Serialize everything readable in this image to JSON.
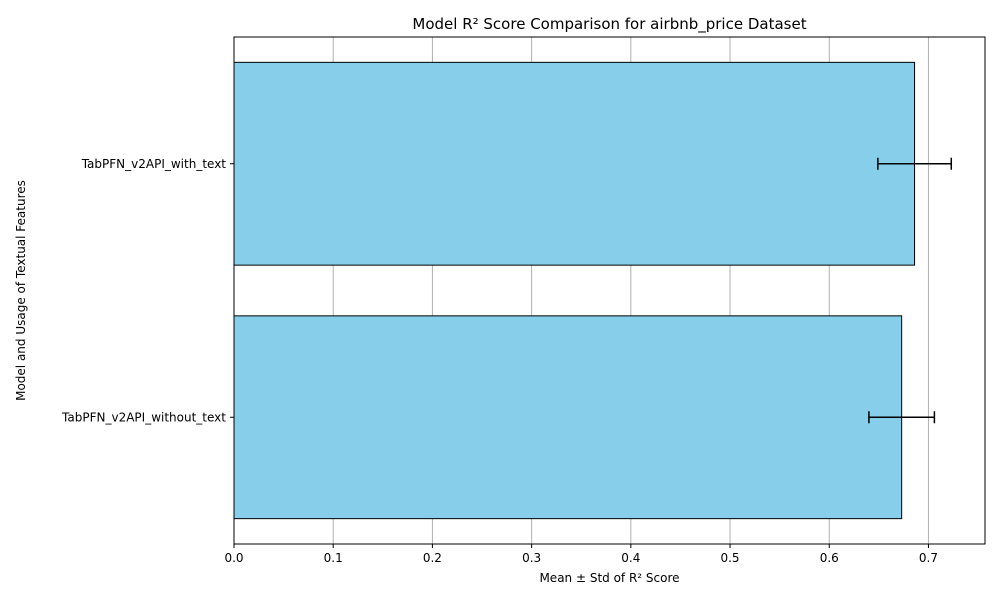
{
  "chart_data": {
    "type": "bar",
    "orientation": "horizontal",
    "title": "Model R² Score Comparison for airbnb_price Dataset",
    "xlabel": "Mean ± Std of R² Score",
    "ylabel": "Model and Usage of Textual Features",
    "categories": [
      "TabPFN_v2API_with_text",
      "TabPFN_v2API_without_text"
    ],
    "values": [
      0.686,
      0.673
    ],
    "errors": [
      0.037,
      0.033
    ],
    "xlim": [
      0.0,
      0.757
    ],
    "xticks": [
      "0.0",
      "0.1",
      "0.2",
      "0.3",
      "0.4",
      "0.5",
      "0.6",
      "0.7"
    ],
    "grid": "vertical",
    "bar_color": "#87CEEB",
    "bar_edge_color": "#000000",
    "grid_color": "#b0b0b0"
  }
}
